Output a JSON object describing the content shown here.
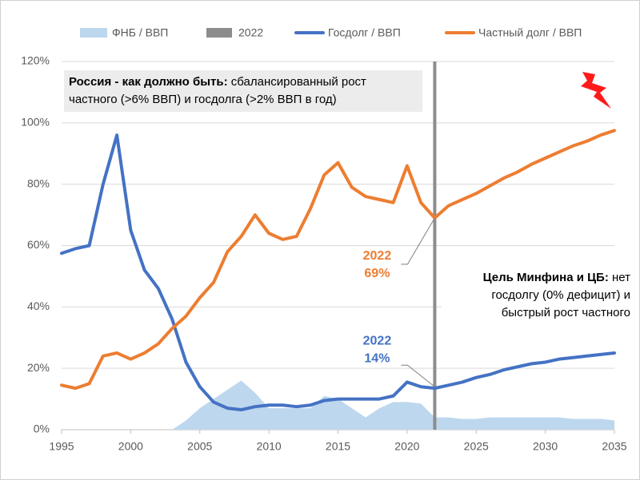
{
  "chart_data": {
    "type": "line",
    "x": [
      1995,
      1996,
      1997,
      1998,
      1999,
      2000,
      2001,
      2002,
      2003,
      2004,
      2005,
      2006,
      2007,
      2008,
      2009,
      2010,
      2011,
      2012,
      2013,
      2014,
      2015,
      2016,
      2017,
      2018,
      2019,
      2020,
      2021,
      2022,
      2023,
      2024,
      2025,
      2026,
      2027,
      2028,
      2029,
      2030,
      2031,
      2032,
      2033,
      2034,
      2035
    ],
    "series": [
      {
        "name": "ФНБ / ВВП",
        "kind": "area",
        "color": "#bdd7ee",
        "values": [
          null,
          null,
          null,
          null,
          null,
          null,
          null,
          null,
          0,
          3,
          7,
          10,
          13,
          16,
          12,
          7,
          7,
          7,
          7,
          11,
          10,
          7,
          4,
          7,
          9,
          9,
          8.5,
          4,
          4,
          3.5,
          3.5,
          4,
          4,
          4,
          4,
          4,
          4,
          3.5,
          3.5,
          3.5,
          3
        ]
      },
      {
        "name": "2022",
        "kind": "vline",
        "color": "#8c8c8c",
        "at": 2022
      },
      {
        "name": "Госдолг / ВВП",
        "kind": "line",
        "color": "#4472c4",
        "values": [
          57.5,
          59,
          60,
          80,
          96,
          65,
          52,
          46,
          36,
          22,
          14,
          9,
          7,
          6.5,
          7.5,
          8,
          8,
          7.5,
          8,
          9.5,
          10,
          10,
          10,
          10,
          11,
          15.5,
          14,
          13.5,
          14.5,
          15.5,
          17,
          18,
          19.5,
          20.5,
          21.5,
          22,
          23,
          23.5,
          24,
          24.5,
          25
        ]
      },
      {
        "name": "Частный долг / ВВП",
        "kind": "line",
        "color": "#ed7d31",
        "values": [
          14.5,
          13.5,
          15,
          24,
          25,
          23,
          25,
          28,
          33,
          37,
          43,
          48,
          58,
          63,
          70,
          64,
          62,
          63,
          72,
          83,
          87,
          79,
          76,
          75,
          74,
          86,
          74,
          69,
          73,
          75,
          77,
          79.5,
          82,
          84,
          86.5,
          88.5,
          90.5,
          92.5,
          94,
          96,
          97.5
        ]
      }
    ],
    "point_labels": [
      {
        "year": 2022,
        "year_label": "2022",
        "value": 69,
        "value_label": "69%",
        "color": "#ed7d31"
      },
      {
        "year": 2022,
        "year_label": "2022",
        "value": 14,
        "value_label": "14%",
        "color": "#4472c4"
      }
    ],
    "notes": [
      {
        "bold": "Россия - как должно быть:",
        "text": "сбалансированный рост частного (>6% ВВП) и госдолга (>2% ВВП в год)"
      },
      {
        "bold": "Цель Минфина и ЦБ:",
        "text": "нет госдолгу (0% дефицит) и быстрый рост частного"
      }
    ],
    "xlim": [
      1995,
      2035
    ],
    "xticks": [
      1995,
      2000,
      2005,
      2010,
      2015,
      2020,
      2025,
      2030,
      2035
    ],
    "ylim": [
      0,
      120
    ],
    "yticks": [
      {
        "value": 0,
        "label": "0%"
      },
      {
        "value": 20,
        "label": "20%"
      },
      {
        "value": 40,
        "label": "40%"
      },
      {
        "value": 60,
        "label": "60%"
      },
      {
        "value": 80,
        "label": "80%"
      },
      {
        "value": 100,
        "label": "100%"
      },
      {
        "value": 120,
        "label": "120%"
      }
    ],
    "grid": true
  }
}
